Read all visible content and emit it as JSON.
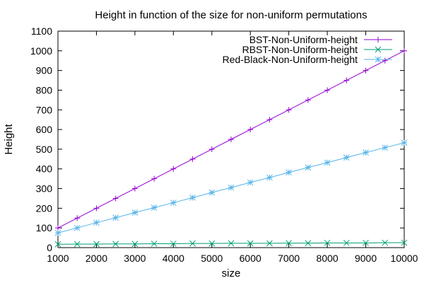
{
  "chart_data": {
    "type": "line",
    "title": "Height in function of the size for non-uniform permutations",
    "xlabel": "size",
    "ylabel": "Height",
    "xlim": [
      1000,
      10000
    ],
    "ylim": [
      0,
      1100
    ],
    "xticks": [
      1000,
      2000,
      3000,
      4000,
      5000,
      6000,
      7000,
      8000,
      9000,
      10000
    ],
    "yticks": [
      0,
      100,
      200,
      300,
      400,
      500,
      600,
      700,
      800,
      900,
      1000,
      1100
    ],
    "grid": false,
    "legend_position": "top-right",
    "x": [
      1000,
      1500,
      2000,
      2500,
      3000,
      3500,
      4000,
      4500,
      5000,
      5500,
      6000,
      6500,
      7000,
      7500,
      8000,
      8500,
      9000,
      9500,
      10000
    ],
    "series": [
      {
        "name": "BST-Non-Uniform-height",
        "color": "#9400d3",
        "marker": "plus",
        "values": [
          100,
          150,
          200,
          250,
          300,
          350,
          400,
          450,
          500,
          550,
          600,
          650,
          700,
          750,
          800,
          850,
          900,
          950,
          1000
        ]
      },
      {
        "name": "RBST-Non-Uniform-height",
        "color": "#009e73",
        "marker": "cross",
        "values": [
          17,
          18,
          18,
          19,
          19,
          20,
          20,
          21,
          21,
          22,
          22,
          22,
          23,
          23,
          24,
          24,
          24,
          25,
          25
        ]
      },
      {
        "name": "Red-Black-Non-Uniform-height",
        "color": "#56b4e9",
        "marker": "star",
        "values": [
          75,
          100,
          127,
          152,
          178,
          203,
          228,
          254,
          280,
          305,
          331,
          356,
          382,
          407,
          432,
          458,
          483,
          508,
          533
        ]
      }
    ]
  }
}
